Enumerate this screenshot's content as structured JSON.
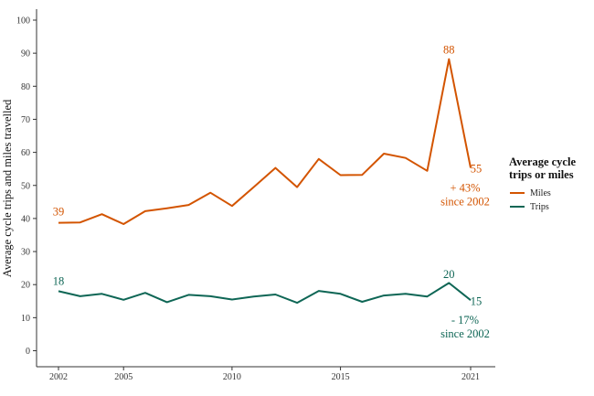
{
  "chart_data": {
    "type": "line",
    "xlabel": "",
    "ylabel": "Average cycle trips and miles travelled",
    "x_ticks": [
      2002,
      2005,
      2010,
      2015,
      2021
    ],
    "y_ticks": [
      0,
      10,
      20,
      30,
      40,
      50,
      60,
      70,
      80,
      90,
      100
    ],
    "xlim": [
      2002,
      2021
    ],
    "ylim": [
      0,
      100
    ],
    "grid": false,
    "legend": {
      "title_line1": "Average cycle",
      "title_line2": "trips or miles",
      "placement": "right"
    },
    "x": [
      2002,
      2003,
      2004,
      2005,
      2006,
      2007,
      2008,
      2009,
      2010,
      2011,
      2012,
      2013,
      2014,
      2015,
      2016,
      2017,
      2018,
      2019,
      2020,
      2021
    ],
    "series": [
      {
        "name": "Miles",
        "color": "#d35400",
        "values": [
          38.7,
          38.8,
          41.3,
          38.3,
          42.2,
          43.1,
          44.1,
          47.8,
          43.8,
          49.5,
          55.3,
          49.5,
          58.0,
          53.1,
          53.2,
          59.6,
          58.3,
          54.4,
          88.2,
          55.3
        ]
      },
      {
        "name": "Trips",
        "color": "#0e6655",
        "values": [
          18.0,
          16.5,
          17.2,
          15.4,
          17.5,
          14.7,
          16.9,
          16.5,
          15.5,
          16.4,
          17.0,
          14.5,
          18.1,
          17.2,
          14.8,
          16.7,
          17.2,
          16.4,
          20.5,
          15.3
        ]
      }
    ],
    "annotations": [
      {
        "series": "Miles",
        "x": 2002,
        "y": 39,
        "text": "39"
      },
      {
        "series": "Miles",
        "x": 2020,
        "y": 88,
        "text": "88"
      },
      {
        "series": "Miles",
        "x": 2021,
        "y": 55,
        "text": "55"
      },
      {
        "series": "Miles",
        "text_line1": "+ 43%",
        "text_line2": "since 2002"
      },
      {
        "series": "Trips",
        "x": 2002,
        "y": 18,
        "text": "18"
      },
      {
        "series": "Trips",
        "x": 2020,
        "y": 20,
        "text": "20"
      },
      {
        "series": "Trips",
        "x": 2021,
        "y": 15,
        "text": "15"
      },
      {
        "series": "Trips",
        "text_line1": "- 17%",
        "text_line2": "since 2002"
      }
    ]
  }
}
